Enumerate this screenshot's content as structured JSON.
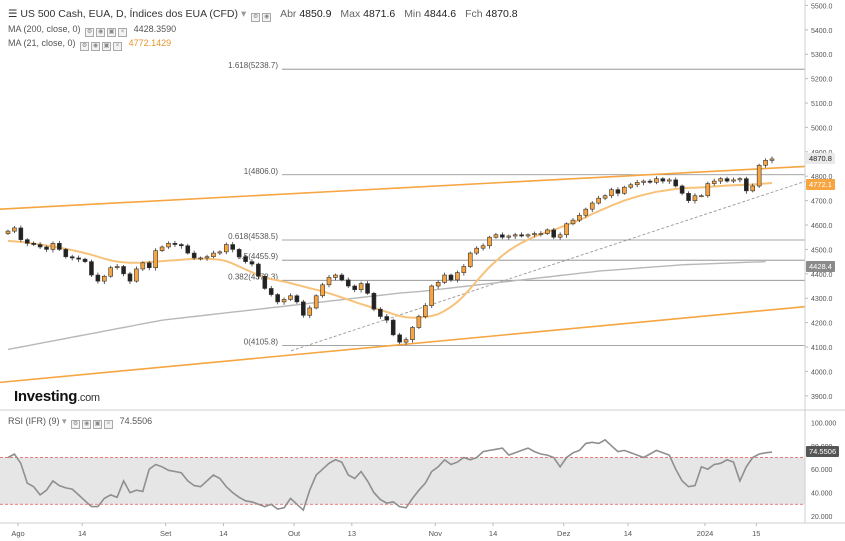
{
  "header": {
    "title": "US 500 Cash, EUA, D, Índices dos EUA (CFD)",
    "open_label": "Abr",
    "open": "4850.9",
    "high_label": "Max",
    "high": "4871.6",
    "low_label": "Min",
    "low": "4844.6",
    "close_label": "Fch",
    "close": "4870.8",
    "ma200_label": "MA (200, close, 0)",
    "ma200_value": "4428.3590",
    "ma21_label": "MA (21, close, 0)",
    "ma21_value": "4772.1429",
    "rsi_label": "RSI (IFR) (9)",
    "rsi_value": "74.5506"
  },
  "logo": {
    "name": "Investing",
    "domain": ".com"
  },
  "colors": {
    "bull": "#f7a541",
    "bear": "#222222",
    "ma21": "#f7c27a",
    "ma200": "#b8b8b8",
    "channel": "#f7a541",
    "fib": "#888888",
    "rsi_line": "#8f8f8f",
    "rsi_band": "#e6e6e6",
    "rsi_guide": "#e05555"
  },
  "price_tags": {
    "last": "4870.8",
    "ma21": "4772.1",
    "ma200": "4428.4"
  },
  "rsi_tag": "74.5506",
  "chart_data": {
    "type": "candlestick",
    "y_axis": {
      "min": 3850,
      "max": 5510,
      "ticks": [
        "3900.0",
        "4000.0",
        "4100.0",
        "4200.0",
        "4300.0",
        "4400.0",
        "4500.0",
        "4600.0",
        "4700.0",
        "4800.0",
        "4900.0",
        "5000.0",
        "5100.0",
        "5200.0",
        "5300.0",
        "5400.0",
        "5500.0"
      ]
    },
    "x_ticks": [
      {
        "label": "Ago",
        "i": 0
      },
      {
        "label": "14",
        "i": 10
      },
      {
        "label": "Set",
        "i": 23
      },
      {
        "label": "14",
        "i": 32
      },
      {
        "label": "Out",
        "i": 43
      },
      {
        "label": "13",
        "i": 52
      },
      {
        "label": "Nov",
        "i": 65
      },
      {
        "label": "14",
        "i": 74
      },
      {
        "label": "Dez",
        "i": 85
      },
      {
        "label": "14",
        "i": 95
      },
      {
        "label": "2024",
        "i": 107
      },
      {
        "label": "15",
        "i": 115
      }
    ],
    "close": [
      4575,
      4588,
      4540,
      4525,
      4520,
      4510,
      4500,
      4525,
      4500,
      4470,
      4465,
      4460,
      4450,
      4395,
      4370,
      4390,
      4425,
      4430,
      4400,
      4370,
      4420,
      4445,
      4425,
      4495,
      4510,
      4525,
      4520,
      4515,
      4485,
      4465,
      4465,
      4470,
      4485,
      4490,
      4520,
      4500,
      4470,
      4450,
      4440,
      4390,
      4340,
      4315,
      4285,
      4295,
      4310,
      4285,
      4230,
      4260,
      4310,
      4355,
      4385,
      4395,
      4375,
      4350,
      4335,
      4360,
      4320,
      4255,
      4225,
      4210,
      4150,
      4120,
      4130,
      4180,
      4225,
      4270,
      4350,
      4365,
      4395,
      4375,
      4405,
      4430,
      4485,
      4505,
      4515,
      4550,
      4560,
      4550,
      4555,
      4560,
      4555,
      4560,
      4565,
      4565,
      4580,
      4550,
      4560,
      4605,
      4620,
      4640,
      4665,
      4690,
      4710,
      4720,
      4745,
      4730,
      4755,
      4765,
      4775,
      4780,
      4775,
      4790,
      4780,
      4785,
      4760,
      4730,
      4700,
      4720,
      4720,
      4770,
      4780,
      4790,
      4780,
      4785,
      4790,
      4740,
      4760,
      4845,
      4865,
      4870.8
    ],
    "ma21": [
      4535,
      4533,
      4531,
      4528,
      4524,
      4520,
      4516,
      4512,
      4507,
      4502,
      4497,
      4491,
      4485,
      4478,
      4470,
      4462,
      4455,
      4450,
      4447,
      4445,
      4445,
      4446,
      4448,
      4450,
      4452,
      4454,
      4456,
      4458,
      4460,
      4461,
      4462,
      4462,
      4460,
      4458,
      4452,
      4442,
      4430,
      4418,
      4406,
      4395,
      4385,
      4378,
      4373,
      4368,
      4362,
      4355,
      4348,
      4341,
      4335,
      4328,
      4320,
      4312,
      4303,
      4294,
      4285,
      4276,
      4268,
      4260,
      4252,
      4244,
      4235,
      4227,
      4222,
      4220,
      4221,
      4223,
      4227,
      4235,
      4248,
      4265,
      4285,
      4310,
      4340,
      4370,
      4400,
      4428,
      4452,
      4475,
      4495,
      4512,
      4527,
      4540,
      4552,
      4562,
      4572,
      4580,
      4590,
      4600,
      4610,
      4620,
      4632,
      4645,
      4657,
      4668,
      4680,
      4690,
      4700,
      4709,
      4717,
      4724,
      4730,
      4736,
      4740,
      4744,
      4748,
      4750,
      4752,
      4753,
      4754,
      4756,
      4758,
      4760,
      4762,
      4763,
      4764,
      4765,
      4766,
      4768,
      4770,
      4772.1
    ],
    "ma200": [
      4090,
      4095,
      4100,
      4105,
      4110,
      4115,
      4120,
      4125,
      4130,
      4135,
      4140,
      4145,
      4150,
      4155,
      4160,
      4165,
      4170,
      4175,
      4180,
      4185,
      4190,
      4195,
      4200,
      4205,
      4210,
      4213,
      4216,
      4219,
      4222,
      4225,
      4228,
      4231,
      4234,
      4237,
      4240,
      4243,
      4246,
      4249,
      4252,
      4255,
      4258,
      4261,
      4264,
      4267,
      4270,
      4273,
      4276,
      4279,
      4282,
      4285,
      4288,
      4291,
      4294,
      4297,
      4300,
      4303,
      4306,
      4309,
      4312,
      4315,
      4318,
      4321,
      4323,
      4325,
      4327,
      4330,
      4333,
      4336,
      4339,
      4342,
      4345,
      4348,
      4351,
      4354,
      4357,
      4360,
      4363,
      4366,
      4369,
      4372,
      4375,
      4378,
      4381,
      4384,
      4387,
      4390,
      4393,
      4396,
      4399,
      4402,
      4405,
      4408,
      4411,
      4413,
      4415,
      4417,
      4419,
      4421,
      4423,
      4425,
      4427,
      4429,
      4431,
      4433,
      4435,
      4437,
      4438,
      4439,
      4440,
      4441,
      4442,
      4443,
      4444,
      4445,
      4446,
      4447,
      4448,
      4449,
      4450,
      4428.4
    ],
    "fib_levels": [
      {
        "label": "1.618(5238.7)",
        "value": 5238.7
      },
      {
        "label": "1(4806.0)",
        "value": 4806.0
      },
      {
        "label": "0.618(4538.5)",
        "value": 4538.5
      },
      {
        "label": "0.5(4455.9)",
        "value": 4455.9
      },
      {
        "label": "0.382(4373.3)",
        "value": 4373.3
      },
      {
        "label": "0(4105.8)",
        "value": 4105.8
      }
    ],
    "channel_upper": {
      "i0": 0,
      "v0": 4665,
      "i1": 124,
      "v1": 4840
    },
    "channel_lower": {
      "i0": 0,
      "v0": 3955,
      "i1": 124,
      "v1": 4265
    },
    "trend_dashed": {
      "i0": 62,
      "v0": 4105,
      "i1": 124,
      "v1": 4795
    },
    "rsi": {
      "y_ticks": [
        "20.000",
        "40.000",
        "60.000",
        "80.000",
        "100.000"
      ],
      "overbought": 70,
      "oversold": 30,
      "values": [
        70,
        73,
        65,
        48,
        45,
        38,
        42,
        50,
        46,
        44,
        43,
        38,
        33,
        28,
        28,
        35,
        38,
        36,
        50,
        40,
        42,
        41,
        60,
        64,
        62,
        59,
        58,
        57,
        50,
        46,
        45,
        50,
        55,
        52,
        45,
        40,
        36,
        33,
        32,
        30,
        28,
        30,
        26,
        27,
        35,
        30,
        25,
        42,
        55,
        60,
        65,
        68,
        66,
        55,
        52,
        58,
        50,
        40,
        34,
        31,
        32,
        28,
        27,
        35,
        42,
        48,
        58,
        62,
        68,
        64,
        66,
        70,
        68,
        70,
        75,
        76,
        77,
        78,
        72,
        74,
        76,
        78,
        75,
        73,
        72,
        70,
        62,
        70,
        74,
        76,
        82,
        83,
        82,
        85,
        80,
        75,
        76,
        74,
        72,
        70,
        73,
        76,
        74,
        72,
        60,
        50,
        45,
        46,
        62,
        60,
        64,
        65,
        68,
        66,
        50,
        62,
        70,
        73,
        74,
        74.5506
      ]
    }
  }
}
